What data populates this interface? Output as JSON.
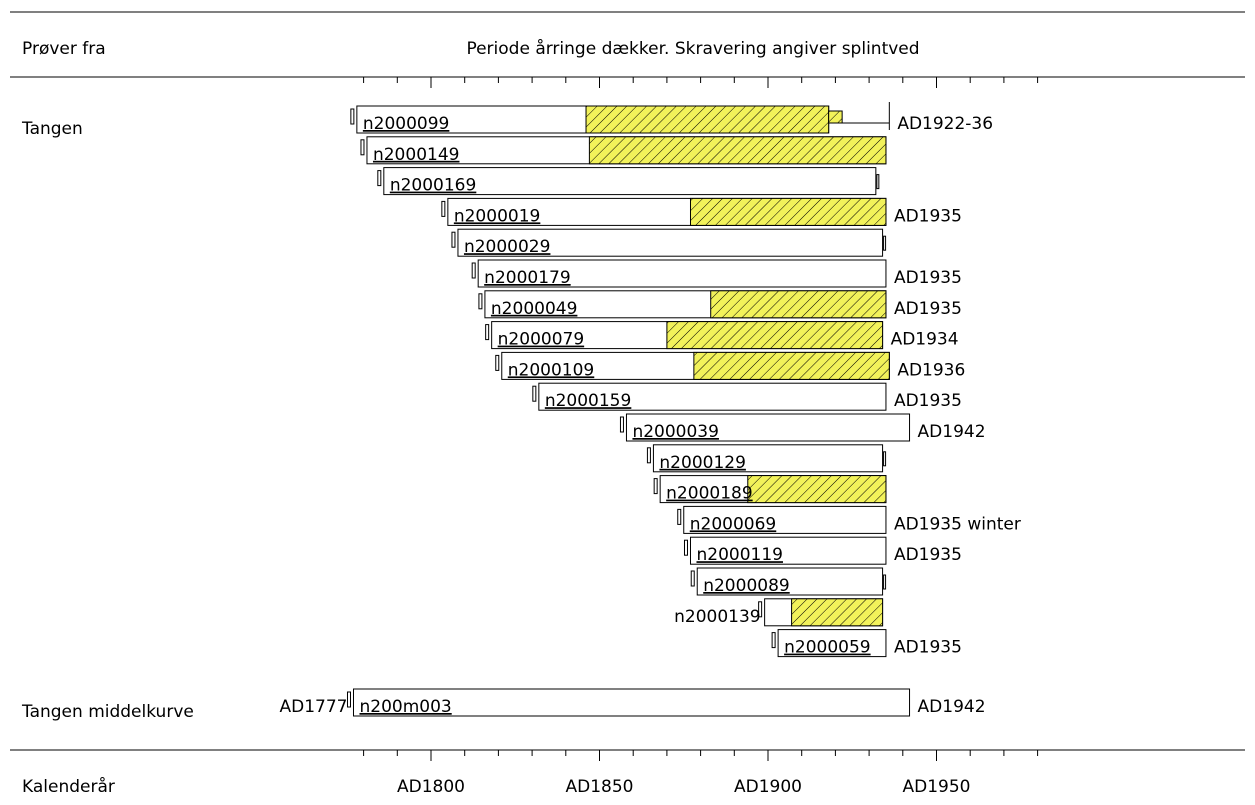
{
  "header": {
    "left_label": "Prøver fra",
    "title": "Periode årringe dækker. Skravering angiver splintved"
  },
  "footer": {
    "left_label": "Kalenderår"
  },
  "colors": {
    "sapwood": "#f2f25a",
    "outline": "#000000"
  },
  "chart_data": {
    "type": "bar",
    "orientation": "horizontal-timeline",
    "x_range": [
      1770,
      1985
    ],
    "x_ticks": [
      {
        "year": 1800,
        "label": "AD1800"
      },
      {
        "year": 1850,
        "label": "AD1850"
      },
      {
        "year": 1900,
        "label": "AD1900"
      },
      {
        "year": 1950,
        "label": "AD1950"
      }
    ],
    "groups": [
      {
        "label": "Tangen",
        "samples": [
          {
            "id": "n2000099",
            "start": 1778,
            "end": 1918,
            "sap_start": 1846,
            "extra_start": 1918,
            "extra_end": 1922,
            "felling_to": 1936,
            "end_label": "AD1922-36"
          },
          {
            "id": "n2000149",
            "start": 1781,
            "end": 1935,
            "sap_start": 1847,
            "end_label": ""
          },
          {
            "id": "n2000169",
            "start": 1786,
            "end": 1932,
            "end_label": ""
          },
          {
            "id": "n2000019",
            "start": 1805,
            "end": 1935,
            "sap_start": 1877,
            "end_label": "AD1935"
          },
          {
            "id": "n2000029",
            "start": 1808,
            "end": 1934,
            "end_label": ""
          },
          {
            "id": "n2000179",
            "start": 1814,
            "end": 1935,
            "end_label": "AD1935"
          },
          {
            "id": "n2000049",
            "start": 1816,
            "end": 1935,
            "sap_start": 1883,
            "end_label": "AD1935"
          },
          {
            "id": "n2000079",
            "start": 1818,
            "end": 1934,
            "sap_start": 1870,
            "end_label": "AD1934"
          },
          {
            "id": "n2000109",
            "start": 1821,
            "end": 1936,
            "sap_start": 1878,
            "end_label": "AD1936"
          },
          {
            "id": "n2000159",
            "start": 1832,
            "end": 1935,
            "end_label": "AD1935"
          },
          {
            "id": "n2000039",
            "start": 1858,
            "end": 1942,
            "end_label": "AD1942"
          },
          {
            "id": "n2000129",
            "start": 1866,
            "end": 1934,
            "end_label": ""
          },
          {
            "id": "n2000189",
            "start": 1868,
            "end": 1935,
            "sap_start": 1894,
            "end_label": ""
          },
          {
            "id": "n2000069",
            "start": 1875,
            "end": 1935,
            "end_label": "AD1935 winter"
          },
          {
            "id": "n2000119",
            "start": 1877,
            "end": 1935,
            "end_label": "AD1935"
          },
          {
            "id": "n2000089",
            "start": 1879,
            "end": 1934,
            "end_label": ""
          },
          {
            "id": "n2000139",
            "start": 1899,
            "end": 1934,
            "sap_start": 1907,
            "id_left": true,
            "end_label": ""
          },
          {
            "id": "n2000059",
            "start": 1903,
            "end": 1935,
            "end_label": "AD1935"
          }
        ]
      },
      {
        "label": "Tangen middelkurve",
        "samples": [
          {
            "id": "n200m003",
            "start": 1777,
            "end": 1942,
            "start_label": "AD1777",
            "end_label": "AD1942"
          }
        ]
      }
    ]
  }
}
